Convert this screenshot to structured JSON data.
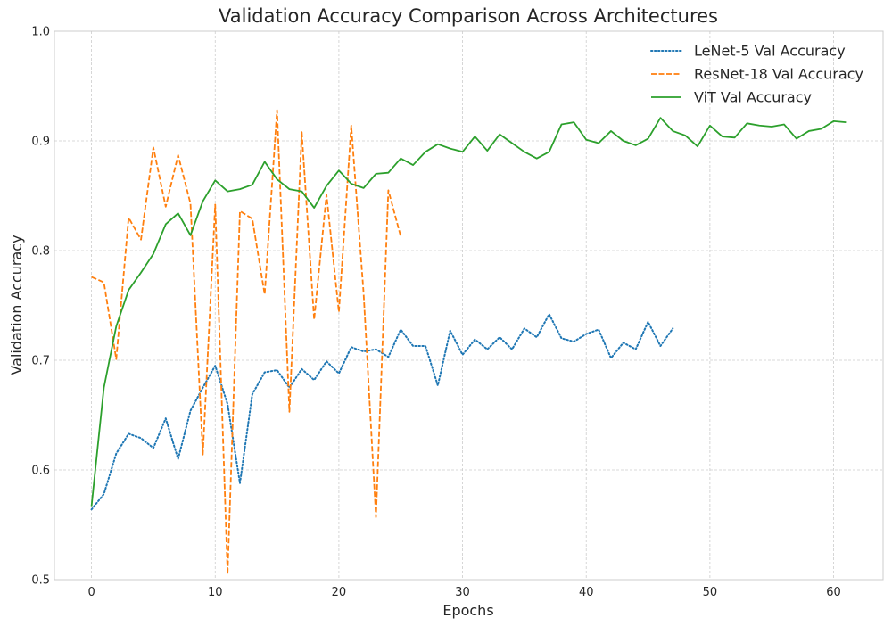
{
  "chart_data": {
    "type": "line",
    "title": "Validation Accuracy Comparison Across Architectures",
    "xlabel": "Epochs",
    "ylabel": "Validation Accuracy",
    "xlim": [
      -3,
      64
    ],
    "ylim": [
      0.5,
      1.0
    ],
    "x_ticks": [
      0,
      10,
      20,
      30,
      40,
      50,
      60
    ],
    "y_ticks": [
      0.5,
      0.6,
      0.7,
      0.8,
      0.9,
      1.0
    ],
    "grid": true,
    "legend": "upper right",
    "series": [
      {
        "name": "LeNet-5 Val Accuracy",
        "color": "#1f77b4",
        "style": "dotted",
        "x": [
          0,
          1,
          2,
          3,
          4,
          5,
          6,
          7,
          8,
          9,
          10,
          11,
          12,
          13,
          14,
          15,
          16,
          17,
          18,
          19,
          20,
          21,
          22,
          23,
          24,
          25,
          26,
          27,
          28,
          29,
          30,
          31,
          32,
          33,
          34,
          35,
          36,
          37,
          38,
          39,
          40,
          41,
          42,
          43,
          44,
          45,
          46,
          47
        ],
        "y": [
          0.564,
          0.578,
          0.615,
          0.633,
          0.629,
          0.62,
          0.647,
          0.61,
          0.654,
          0.675,
          0.695,
          0.66,
          0.588,
          0.669,
          0.689,
          0.691,
          0.675,
          0.692,
          0.682,
          0.699,
          0.688,
          0.712,
          0.708,
          0.71,
          0.703,
          0.728,
          0.713,
          0.713,
          0.677,
          0.727,
          0.705,
          0.719,
          0.71,
          0.721,
          0.71,
          0.729,
          0.721,
          0.742,
          0.72,
          0.717,
          0.724,
          0.728,
          0.702,
          0.716,
          0.71,
          0.735,
          0.713,
          0.729
        ]
      },
      {
        "name": "ResNet-18 Val Accuracy",
        "color": "#ff7f0e",
        "style": "dashed",
        "x": [
          0,
          1,
          2,
          3,
          4,
          5,
          6,
          7,
          8,
          9,
          10,
          11,
          12,
          13,
          14,
          15,
          16,
          17,
          18,
          19,
          20,
          21,
          22,
          23,
          24,
          25
        ],
        "y": [
          0.776,
          0.771,
          0.701,
          0.83,
          0.81,
          0.894,
          0.84,
          0.887,
          0.843,
          0.614,
          0.842,
          0.505,
          0.836,
          0.829,
          0.76,
          0.928,
          0.653,
          0.908,
          0.737,
          0.851,
          0.744,
          0.914,
          0.761,
          0.557,
          0.855,
          0.813
        ]
      },
      {
        "name": "ViT Val Accuracy",
        "color": "#2ca02c",
        "style": "solid",
        "x": [
          0,
          1,
          2,
          3,
          4,
          5,
          6,
          7,
          8,
          9,
          10,
          11,
          12,
          13,
          14,
          15,
          16,
          17,
          18,
          19,
          20,
          21,
          22,
          23,
          24,
          25,
          26,
          27,
          28,
          29,
          30,
          31,
          32,
          33,
          34,
          35,
          36,
          37,
          38,
          39,
          40,
          41,
          42,
          43,
          44,
          45,
          46,
          47,
          48,
          49,
          50,
          51,
          52,
          53,
          54,
          55,
          56,
          57,
          58,
          59,
          60,
          61
        ],
        "y": [
          0.567,
          0.675,
          0.731,
          0.764,
          0.78,
          0.797,
          0.824,
          0.834,
          0.814,
          0.845,
          0.864,
          0.854,
          0.856,
          0.86,
          0.881,
          0.865,
          0.856,
          0.854,
          0.839,
          0.859,
          0.873,
          0.861,
          0.857,
          0.87,
          0.871,
          0.884,
          0.878,
          0.89,
          0.897,
          0.893,
          0.89,
          0.904,
          0.891,
          0.906,
          0.898,
          0.89,
          0.884,
          0.89,
          0.915,
          0.917,
          0.901,
          0.898,
          0.909,
          0.9,
          0.896,
          0.902,
          0.921,
          0.909,
          0.905,
          0.895,
          0.914,
          0.904,
          0.903,
          0.916,
          0.914,
          0.913,
          0.915,
          0.902,
          0.909,
          0.911,
          0.918,
          0.917
        ]
      }
    ]
  }
}
